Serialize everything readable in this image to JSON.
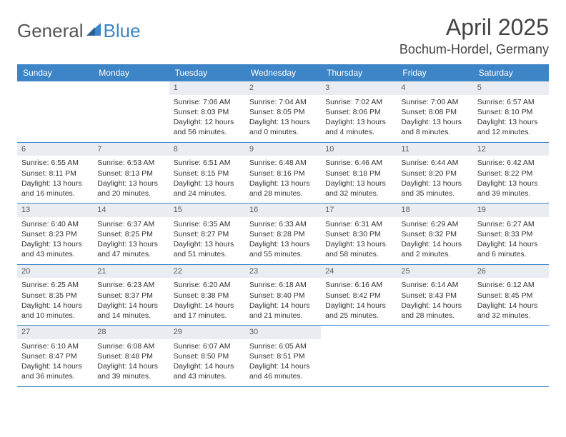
{
  "logo": {
    "part1": "General",
    "part2": "Blue"
  },
  "header": {
    "month_title": "April 2025",
    "location": "Bochum-Hordel, Germany"
  },
  "colors": {
    "accent": "#3d85c6",
    "header_bg": "#3d85c6",
    "header_fg": "#ffffff",
    "daynum_bg": "#e9edf1",
    "border": "#3d85c6",
    "text": "#333333"
  },
  "day_names": [
    "Sunday",
    "Monday",
    "Tuesday",
    "Wednesday",
    "Thursday",
    "Friday",
    "Saturday"
  ],
  "weeks": [
    [
      {
        "empty": true
      },
      {
        "empty": true
      },
      {
        "day": "1",
        "sunrise": "Sunrise: 7:06 AM",
        "sunset": "Sunset: 8:03 PM",
        "daylight": "Daylight: 12 hours and 56 minutes."
      },
      {
        "day": "2",
        "sunrise": "Sunrise: 7:04 AM",
        "sunset": "Sunset: 8:05 PM",
        "daylight": "Daylight: 13 hours and 0 minutes."
      },
      {
        "day": "3",
        "sunrise": "Sunrise: 7:02 AM",
        "sunset": "Sunset: 8:06 PM",
        "daylight": "Daylight: 13 hours and 4 minutes."
      },
      {
        "day": "4",
        "sunrise": "Sunrise: 7:00 AM",
        "sunset": "Sunset: 8:08 PM",
        "daylight": "Daylight: 13 hours and 8 minutes."
      },
      {
        "day": "5",
        "sunrise": "Sunrise: 6:57 AM",
        "sunset": "Sunset: 8:10 PM",
        "daylight": "Daylight: 13 hours and 12 minutes."
      }
    ],
    [
      {
        "day": "6",
        "sunrise": "Sunrise: 6:55 AM",
        "sunset": "Sunset: 8:11 PM",
        "daylight": "Daylight: 13 hours and 16 minutes."
      },
      {
        "day": "7",
        "sunrise": "Sunrise: 6:53 AM",
        "sunset": "Sunset: 8:13 PM",
        "daylight": "Daylight: 13 hours and 20 minutes."
      },
      {
        "day": "8",
        "sunrise": "Sunrise: 6:51 AM",
        "sunset": "Sunset: 8:15 PM",
        "daylight": "Daylight: 13 hours and 24 minutes."
      },
      {
        "day": "9",
        "sunrise": "Sunrise: 6:48 AM",
        "sunset": "Sunset: 8:16 PM",
        "daylight": "Daylight: 13 hours and 28 minutes."
      },
      {
        "day": "10",
        "sunrise": "Sunrise: 6:46 AM",
        "sunset": "Sunset: 8:18 PM",
        "daylight": "Daylight: 13 hours and 32 minutes."
      },
      {
        "day": "11",
        "sunrise": "Sunrise: 6:44 AM",
        "sunset": "Sunset: 8:20 PM",
        "daylight": "Daylight: 13 hours and 35 minutes."
      },
      {
        "day": "12",
        "sunrise": "Sunrise: 6:42 AM",
        "sunset": "Sunset: 8:22 PM",
        "daylight": "Daylight: 13 hours and 39 minutes."
      }
    ],
    [
      {
        "day": "13",
        "sunrise": "Sunrise: 6:40 AM",
        "sunset": "Sunset: 8:23 PM",
        "daylight": "Daylight: 13 hours and 43 minutes."
      },
      {
        "day": "14",
        "sunrise": "Sunrise: 6:37 AM",
        "sunset": "Sunset: 8:25 PM",
        "daylight": "Daylight: 13 hours and 47 minutes."
      },
      {
        "day": "15",
        "sunrise": "Sunrise: 6:35 AM",
        "sunset": "Sunset: 8:27 PM",
        "daylight": "Daylight: 13 hours and 51 minutes."
      },
      {
        "day": "16",
        "sunrise": "Sunrise: 6:33 AM",
        "sunset": "Sunset: 8:28 PM",
        "daylight": "Daylight: 13 hours and 55 minutes."
      },
      {
        "day": "17",
        "sunrise": "Sunrise: 6:31 AM",
        "sunset": "Sunset: 8:30 PM",
        "daylight": "Daylight: 13 hours and 58 minutes."
      },
      {
        "day": "18",
        "sunrise": "Sunrise: 6:29 AM",
        "sunset": "Sunset: 8:32 PM",
        "daylight": "Daylight: 14 hours and 2 minutes."
      },
      {
        "day": "19",
        "sunrise": "Sunrise: 6:27 AM",
        "sunset": "Sunset: 8:33 PM",
        "daylight": "Daylight: 14 hours and 6 minutes."
      }
    ],
    [
      {
        "day": "20",
        "sunrise": "Sunrise: 6:25 AM",
        "sunset": "Sunset: 8:35 PM",
        "daylight": "Daylight: 14 hours and 10 minutes."
      },
      {
        "day": "21",
        "sunrise": "Sunrise: 6:23 AM",
        "sunset": "Sunset: 8:37 PM",
        "daylight": "Daylight: 14 hours and 14 minutes."
      },
      {
        "day": "22",
        "sunrise": "Sunrise: 6:20 AM",
        "sunset": "Sunset: 8:38 PM",
        "daylight": "Daylight: 14 hours and 17 minutes."
      },
      {
        "day": "23",
        "sunrise": "Sunrise: 6:18 AM",
        "sunset": "Sunset: 8:40 PM",
        "daylight": "Daylight: 14 hours and 21 minutes."
      },
      {
        "day": "24",
        "sunrise": "Sunrise: 6:16 AM",
        "sunset": "Sunset: 8:42 PM",
        "daylight": "Daylight: 14 hours and 25 minutes."
      },
      {
        "day": "25",
        "sunrise": "Sunrise: 6:14 AM",
        "sunset": "Sunset: 8:43 PM",
        "daylight": "Daylight: 14 hours and 28 minutes."
      },
      {
        "day": "26",
        "sunrise": "Sunrise: 6:12 AM",
        "sunset": "Sunset: 8:45 PM",
        "daylight": "Daylight: 14 hours and 32 minutes."
      }
    ],
    [
      {
        "day": "27",
        "sunrise": "Sunrise: 6:10 AM",
        "sunset": "Sunset: 8:47 PM",
        "daylight": "Daylight: 14 hours and 36 minutes."
      },
      {
        "day": "28",
        "sunrise": "Sunrise: 6:08 AM",
        "sunset": "Sunset: 8:48 PM",
        "daylight": "Daylight: 14 hours and 39 minutes."
      },
      {
        "day": "29",
        "sunrise": "Sunrise: 6:07 AM",
        "sunset": "Sunset: 8:50 PM",
        "daylight": "Daylight: 14 hours and 43 minutes."
      },
      {
        "day": "30",
        "sunrise": "Sunrise: 6:05 AM",
        "sunset": "Sunset: 8:51 PM",
        "daylight": "Daylight: 14 hours and 46 minutes."
      },
      {
        "empty": true
      },
      {
        "empty": true
      },
      {
        "empty": true
      }
    ]
  ]
}
